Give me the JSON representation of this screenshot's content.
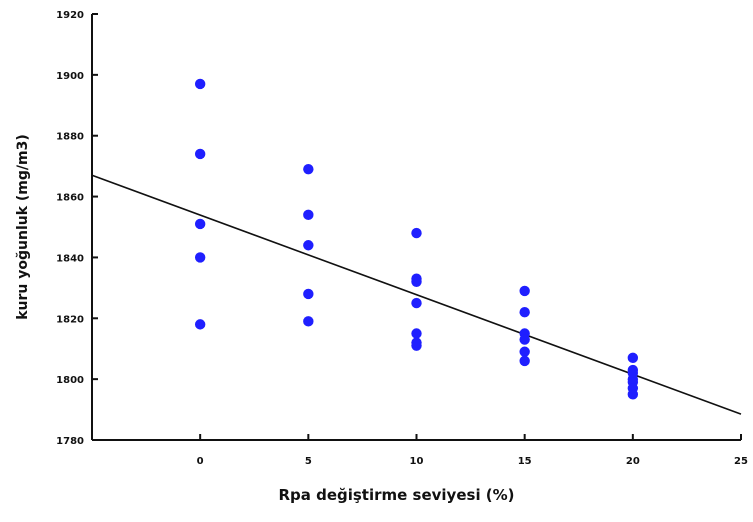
{
  "chart_data": {
    "type": "scatter",
    "title": "",
    "xlabel": "Rpa değiştirme seviyesi (%)",
    "ylabel": "kuru yoğunluk (mg/m3)",
    "xlim": [
      -5,
      25
    ],
    "ylim": [
      1780,
      1920
    ],
    "x_ticks": [
      0,
      5,
      10,
      15,
      20,
      25
    ],
    "x_tick_labels": [
      "0",
      "5",
      "10",
      "15",
      "20",
      "25"
    ],
    "y_ticks": [
      1780,
      1800,
      1820,
      1840,
      1860,
      1880,
      1900,
      1920
    ],
    "y_tick_labels": [
      "1780",
      "1800",
      "1820",
      "1840",
      "1860",
      "1880",
      "1900",
      "1920"
    ],
    "grid": false,
    "marker_color": "#1f1fff",
    "line_color": "#111111",
    "series": [
      {
        "x": [
          0,
          0,
          0,
          0,
          0,
          5,
          5,
          5,
          5,
          5,
          10,
          10,
          10,
          10,
          10,
          10,
          10,
          15,
          15,
          15,
          15,
          15,
          15,
          20,
          20,
          20,
          20,
          20,
          20,
          20
        ],
        "y": [
          1897,
          1874,
          1851,
          1840,
          1818,
          1869,
          1854,
          1844,
          1828,
          1819,
          1848,
          1833,
          1832,
          1825,
          1815,
          1811,
          1812,
          1829,
          1822,
          1815,
          1813,
          1809,
          1806,
          1807,
          1803,
          1802,
          1800,
          1799,
          1797,
          1795
        ]
      }
    ],
    "trendline": {
      "x": [
        -5,
        25
      ],
      "y": [
        1867,
        1788.5
      ]
    }
  }
}
